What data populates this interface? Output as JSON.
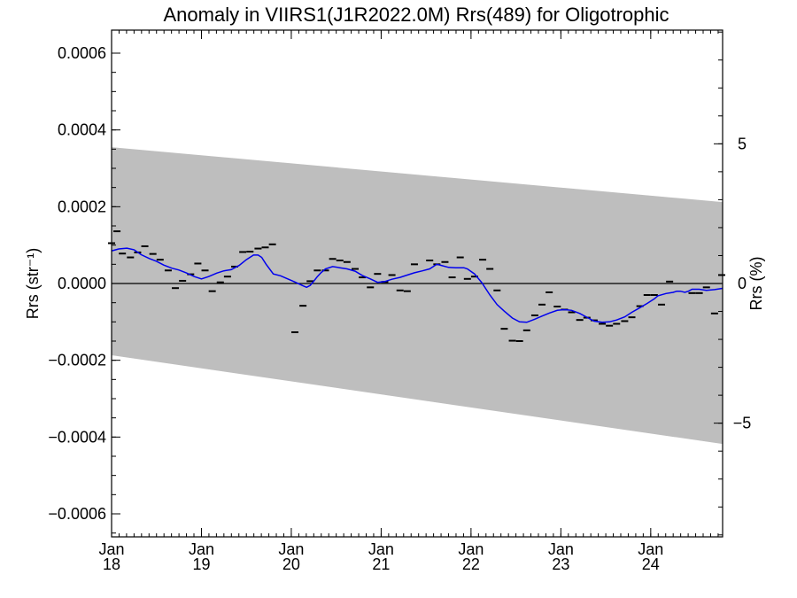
{
  "chart_data": {
    "type": "scatter",
    "title": "Anomaly in VIIRS1(J1R2022.0M) Rrs(489) for Oligotrophic",
    "ylabel_left": "Rrs (str⁻¹)",
    "ylabel_right": "Rrs (%)",
    "x_range": [
      2018.0,
      2024.8
    ],
    "ylim_left": [
      -0.00066,
      0.00066
    ],
    "ylim_right": [
      -9.07,
      9.07
    ],
    "left_ticks": [
      "0.0006",
      "0.0004",
      "0.0002",
      "0.0000",
      "−0.0002",
      "−0.0004",
      "−0.0006"
    ],
    "left_tick_values": [
      0.0006,
      0.0004,
      0.0002,
      0.0,
      -0.0002,
      -0.0004,
      -0.0006
    ],
    "right_ticks": [
      "5",
      "0",
      "−5"
    ],
    "right_tick_values": [
      5,
      0,
      -5
    ],
    "x_ticks": [
      {
        "top": "Jan",
        "bottom": "18",
        "x": 2018
      },
      {
        "top": "Jan",
        "bottom": "19",
        "x": 2019
      },
      {
        "top": "Jan",
        "bottom": "20",
        "x": 2020
      },
      {
        "top": "Jan",
        "bottom": "21",
        "x": 2021
      },
      {
        "top": "Jan",
        "bottom": "22",
        "x": 2022
      },
      {
        "top": "Jan",
        "bottom": "23",
        "x": 2023
      },
      {
        "top": "Jan",
        "bottom": "24",
        "x": 2024
      }
    ],
    "band": {
      "start_x": 2018.0,
      "end_x": 2024.8,
      "start_upper": 0.000355,
      "start_lower": -0.000187,
      "end_upper": 0.000212,
      "end_lower": -0.000418
    },
    "zero_line": 0.0,
    "colors": {
      "band": "#bebebe",
      "smooth": "#0000ee",
      "points": "#000000"
    },
    "points": [
      [
        2018.0,
        0.000105
      ],
      [
        2018.06,
        0.000136
      ],
      [
        2018.12,
        7.8e-05
      ],
      [
        2018.21,
        6.8e-05
      ],
      [
        2018.29,
        8.1e-05
      ],
      [
        2018.37,
        9.7e-05
      ],
      [
        2018.46,
        7.7e-05
      ],
      [
        2018.54,
        6.2e-05
      ],
      [
        2018.63,
        3.4e-05
      ],
      [
        2018.71,
        -1.2e-05
      ],
      [
        2018.79,
        7e-06
      ],
      [
        2018.88,
        2.4e-05
      ],
      [
        2018.96,
        5.2e-05
      ],
      [
        2019.04,
        3.4e-05
      ],
      [
        2019.12,
        -2e-05
      ],
      [
        2019.21,
        3e-06
      ],
      [
        2019.29,
        1.8e-05
      ],
      [
        2019.37,
        4.4e-05
      ],
      [
        2019.46,
        8.2e-05
      ],
      [
        2019.54,
        8.3e-05
      ],
      [
        2019.63,
        9.1e-05
      ],
      [
        2019.71,
        9.4e-05
      ],
      [
        2019.79,
        0.000102
      ],
      [
        2020.04,
        -0.000127
      ],
      [
        2020.13,
        -5.8e-05
      ],
      [
        2020.21,
        6e-06
      ],
      [
        2020.29,
        3.4e-05
      ],
      [
        2020.38,
        3.4e-05
      ],
      [
        2020.46,
        6.4e-05
      ],
      [
        2020.54,
        6e-05
      ],
      [
        2020.62,
        5.6e-05
      ],
      [
        2020.71,
        3.8e-05
      ],
      [
        2020.79,
        1.6e-05
      ],
      [
        2020.88,
        -1e-05
      ],
      [
        2020.96,
        2.5e-05
      ],
      [
        2021.04,
        4e-06
      ],
      [
        2021.12,
        2.2e-05
      ],
      [
        2021.21,
        -1.8e-05
      ],
      [
        2021.29,
        -2e-05
      ],
      [
        2021.37,
        5e-05
      ],
      [
        2021.54,
        6e-05
      ],
      [
        2021.62,
        5e-05
      ],
      [
        2021.71,
        5.6e-05
      ],
      [
        2021.79,
        1.6e-05
      ],
      [
        2021.88,
        6.8e-05
      ],
      [
        2021.96,
        1.2e-05
      ],
      [
        2022.04,
        1.8e-05
      ],
      [
        2022.13,
        6.2e-05
      ],
      [
        2022.21,
        3.8e-05
      ],
      [
        2022.29,
        -1.8e-05
      ],
      [
        2022.37,
        -0.000118
      ],
      [
        2022.46,
        -0.000149
      ],
      [
        2022.54,
        -0.00015
      ],
      [
        2022.62,
        -0.000122
      ],
      [
        2022.71,
        -8.3e-05
      ],
      [
        2022.79,
        -5.5e-05
      ],
      [
        2022.87,
        -2.3e-05
      ],
      [
        2022.96,
        -6e-05
      ],
      [
        2023.04,
        -6.8e-05
      ],
      [
        2023.12,
        -7.5e-05
      ],
      [
        2023.21,
        -9.5e-05
      ],
      [
        2023.29,
        -8.9e-05
      ],
      [
        2023.37,
        -9.6e-05
      ],
      [
        2023.46,
        -0.000105
      ],
      [
        2023.54,
        -0.00011
      ],
      [
        2023.62,
        -0.000105
      ],
      [
        2023.71,
        -9.8e-05
      ],
      [
        2023.79,
        -8.8e-05
      ],
      [
        2023.88,
        -5.9e-05
      ],
      [
        2023.96,
        -3e-05
      ],
      [
        2024.04,
        -3e-05
      ],
      [
        2024.12,
        -5.5e-05
      ],
      [
        2024.21,
        5e-06
      ],
      [
        2024.46,
        -2.5e-05
      ],
      [
        2024.54,
        -2.5e-05
      ],
      [
        2024.62,
        -1e-05
      ],
      [
        2024.71,
        -7.8e-05
      ],
      [
        2024.79,
        2.2e-05
      ]
    ],
    "smooth_segments": [
      [
        [
          2018.0,
          8.5e-05
        ],
        [
          2018.08,
          9e-05
        ],
        [
          2018.17,
          9.2e-05
        ],
        [
          2018.25,
          8.8e-05
        ],
        [
          2018.33,
          7.5e-05
        ],
        [
          2018.42,
          6.5e-05
        ],
        [
          2018.5,
          5.8e-05
        ],
        [
          2018.58,
          4.8e-05
        ],
        [
          2018.67,
          4e-05
        ],
        [
          2018.75,
          3.5e-05
        ],
        [
          2018.83,
          2.8e-05
        ],
        [
          2018.92,
          1.8e-05
        ],
        [
          2019.0,
          1.2e-05
        ],
        [
          2019.08,
          1.8e-05
        ],
        [
          2019.17,
          2.7e-05
        ],
        [
          2019.25,
          3.3e-05
        ],
        [
          2019.33,
          3.6e-05
        ],
        [
          2019.42,
          4.7e-05
        ],
        [
          2019.5,
          6.2e-05
        ],
        [
          2019.58,
          7.4e-05
        ],
        [
          2019.63,
          7.4e-05
        ],
        [
          2019.67,
          6.8e-05
        ],
        [
          2019.72,
          5e-05
        ],
        [
          2019.8,
          2.5e-05
        ],
        [
          2019.88,
          2e-05
        ],
        [
          2019.96,
          1.2e-05
        ],
        [
          2020.04,
          4e-06
        ],
        [
          2020.13,
          -6e-06
        ],
        [
          2020.17,
          -1e-05
        ],
        [
          2020.21,
          -5e-06
        ],
        [
          2020.25,
          6e-06
        ],
        [
          2020.29,
          1.8e-05
        ],
        [
          2020.33,
          2.8e-05
        ],
        [
          2020.38,
          3.8e-05
        ],
        [
          2020.46,
          4.4e-05
        ],
        [
          2020.54,
          4.1e-05
        ],
        [
          2020.62,
          3.8e-05
        ],
        [
          2020.71,
          3.2e-05
        ],
        [
          2020.79,
          2.1e-05
        ],
        [
          2020.88,
          1.2e-05
        ],
        [
          2020.96,
          3e-06
        ],
        [
          2021.04,
          5e-06
        ],
        [
          2021.12,
          1.1e-05
        ],
        [
          2021.21,
          1.6e-05
        ],
        [
          2021.29,
          2.2e-05
        ],
        [
          2021.37,
          2.8e-05
        ],
        [
          2021.46,
          3.3e-05
        ],
        [
          2021.54,
          3.8e-05
        ],
        [
          2021.62,
          5e-05
        ],
        [
          2021.67,
          4.7e-05
        ],
        [
          2021.75,
          4.2e-05
        ],
        [
          2021.83,
          4.1e-05
        ],
        [
          2021.92,
          4.1e-05
        ],
        [
          2021.96,
          3.8e-05
        ],
        [
          2022.04,
          2.5e-05
        ],
        [
          2022.12,
          2e-06
        ],
        [
          2022.21,
          -3e-05
        ],
        [
          2022.29,
          -5.5e-05
        ],
        [
          2022.37,
          -7.2e-05
        ],
        [
          2022.46,
          -9e-05
        ],
        [
          2022.54,
          -0.0001
        ],
        [
          2022.62,
          -0.000101
        ],
        [
          2022.71,
          -9.3e-05
        ],
        [
          2022.79,
          -8.5e-05
        ],
        [
          2022.87,
          -7.7e-05
        ],
        [
          2022.96,
          -7e-05
        ],
        [
          2023.04,
          -6.8e-05
        ],
        [
          2023.12,
          -7e-05
        ],
        [
          2023.21,
          -7.8e-05
        ],
        [
          2023.29,
          -8.8e-05
        ],
        [
          2023.37,
          -9.8e-05
        ],
        [
          2023.46,
          -0.000101
        ],
        [
          2023.54,
          -0.0001
        ],
        [
          2023.62,
          -9.5e-05
        ],
        [
          2023.71,
          -8.7e-05
        ],
        [
          2023.79,
          -7.5e-05
        ],
        [
          2023.88,
          -6.3e-05
        ],
        [
          2023.96,
          -5.2e-05
        ],
        [
          2024.04,
          -4e-05
        ],
        [
          2024.08,
          -3.2e-05
        ],
        [
          2024.17,
          -2.6e-05
        ],
        [
          2024.25,
          -2.3e-05
        ],
        [
          2024.29,
          -2e-05
        ],
        [
          2024.33,
          -2e-05
        ],
        [
          2024.38,
          -2.3e-05
        ],
        [
          2024.42,
          -2e-05
        ],
        [
          2024.46,
          -1.5e-05
        ],
        [
          2024.54,
          -1.5e-05
        ],
        [
          2024.62,
          -1.8e-05
        ],
        [
          2024.71,
          -1.6e-05
        ],
        [
          2024.79,
          -1.3e-05
        ],
        [
          2024.8,
          -1.2e-05
        ]
      ]
    ]
  }
}
